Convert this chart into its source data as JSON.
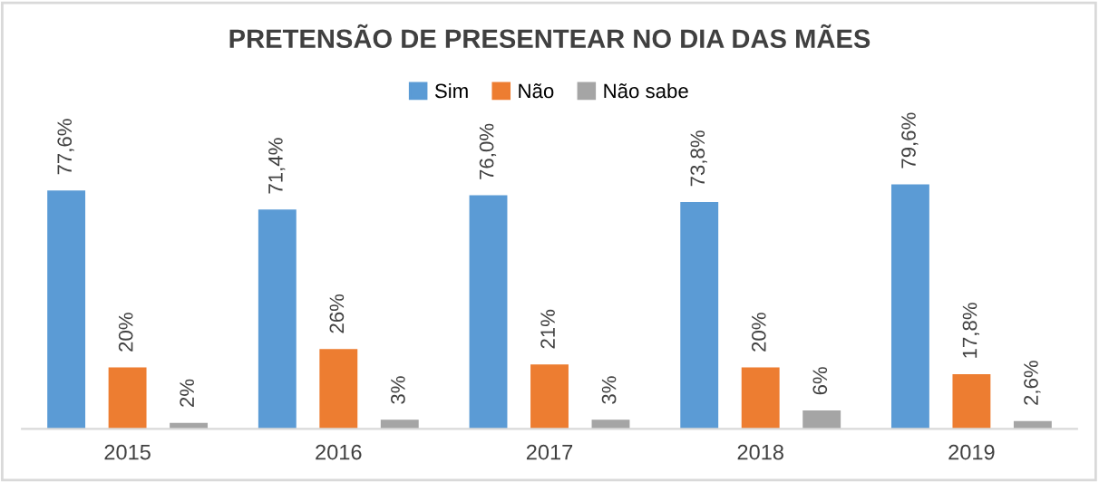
{
  "chart_data": {
    "type": "bar",
    "title": "PRETENSÃO DE PRESENTEAR NO DIA DAS MÃES",
    "categories": [
      "2015",
      "2016",
      "2017",
      "2018",
      "2019"
    ],
    "series": [
      {
        "name": "Sim",
        "color": "#5b9bd5",
        "values": [
          77.6,
          71.4,
          76.0,
          73.8,
          79.6
        ],
        "value_labels": [
          "77,6%",
          "71,4%",
          "76,0%",
          "73,8%",
          "79,6%"
        ]
      },
      {
        "name": "Não",
        "color": "#ed7d31",
        "values": [
          20,
          26,
          21,
          20,
          17.8
        ],
        "value_labels": [
          "20%",
          "26%",
          "21%",
          "20%",
          "17,8%"
        ]
      },
      {
        "name": "Não sabe",
        "color": "#a5a5a5",
        "values": [
          2,
          3,
          3,
          6,
          2.6
        ],
        "value_labels": [
          "2%",
          "3%",
          "3%",
          "6%",
          "2,6%"
        ]
      }
    ],
    "legend": "top",
    "grid": false
  }
}
